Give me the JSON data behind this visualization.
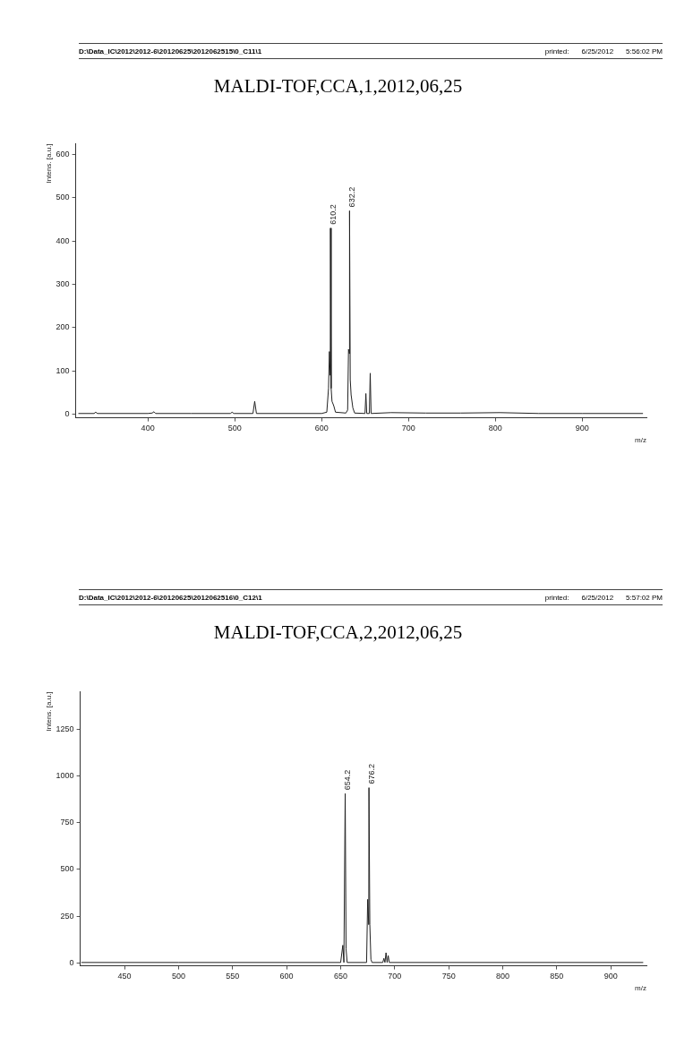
{
  "chart_data": [
    {
      "type": "line",
      "title": "MALDI-TOF,CCA,1,2012,06,25",
      "xlabel": "m/z",
      "ylabel": "Intens. [a.u.]",
      "annotations": [
        "D:\\Data_IC\\2012\\2012-6\\20120625\\2012062515\\0_C11\\1",
        "printed:",
        "6/25/2012",
        "5:56:02 PM",
        {
          "text": "610.2",
          "x": 610.2,
          "y": 430
        },
        {
          "text": "632.2",
          "x": 632.2,
          "y": 470
        }
      ],
      "x": [
        320,
        338,
        340,
        342,
        400,
        405,
        407,
        409,
        450,
        495,
        497,
        499,
        521,
        523,
        525,
        600,
        606,
        608,
        609,
        610,
        610.2,
        611,
        612,
        614,
        616,
        628,
        630,
        631,
        632,
        632.2,
        633,
        634,
        636,
        638,
        650,
        651,
        652,
        655,
        656,
        657,
        680,
        720,
        760,
        805,
        850,
        900,
        970
      ],
      "series": [
        {
          "color": "#222222",
          "values": [
            2,
            2,
            5,
            2,
            2,
            3,
            6,
            2,
            2,
            2,
            5,
            2,
            2,
            30,
            2,
            2,
            5,
            60,
            145,
            90,
            430,
            60,
            30,
            20,
            5,
            3,
            10,
            150,
            140,
            470,
            80,
            45,
            15,
            3,
            2,
            48,
            2,
            2,
            95,
            2,
            4,
            3,
            3,
            4,
            2,
            2,
            2
          ]
        }
      ],
      "xlim": [
        317,
        974
      ],
      "xticks": [
        400,
        500,
        600,
        700,
        800,
        900
      ],
      "ylim": [
        -8,
        625
      ],
      "yticks": [
        0,
        100,
        200,
        300,
        400,
        500,
        600
      ],
      "grid": false,
      "legend": false,
      "marker": "none"
    },
    {
      "type": "line",
      "title": "MALDI-TOF,CCA,2,2012,06,25",
      "xlabel": "m/z",
      "ylabel": "Intens. [a.u.]",
      "annotations": [
        "D:\\Data_IC\\2012\\2012-6\\20120625\\2012062516\\0_C12\\1",
        "printed:",
        "6/25/2012",
        "5:57:02 PM",
        {
          "text": "654.2",
          "x": 654.2,
          "y": 905
        },
        {
          "text": "676.2",
          "x": 676.2,
          "y": 937
        }
      ],
      "x": [
        410,
        500,
        600,
        650,
        652,
        653,
        654.2,
        655,
        656,
        674,
        675,
        676,
        676.2,
        677,
        678,
        679,
        689,
        690,
        691,
        692,
        693,
        694,
        695,
        750,
        850,
        930
      ],
      "series": [
        {
          "color": "#222222",
          "values": [
            3,
            3,
            3,
            3,
            95,
            3,
            905,
            75,
            3,
            3,
            340,
            205,
            937,
            205,
            20,
            3,
            3,
            25,
            3,
            55,
            3,
            40,
            3,
            3,
            3,
            3
          ]
        }
      ],
      "xlim": [
        409,
        933
      ],
      "xticks": [
        450,
        500,
        550,
        600,
        650,
        700,
        750,
        800,
        850,
        900
      ],
      "ylim": [
        -15,
        1450
      ],
      "yticks": [
        0,
        250,
        500,
        750,
        1000,
        1250
      ],
      "grid": false,
      "legend": false,
      "marker": "none"
    }
  ]
}
